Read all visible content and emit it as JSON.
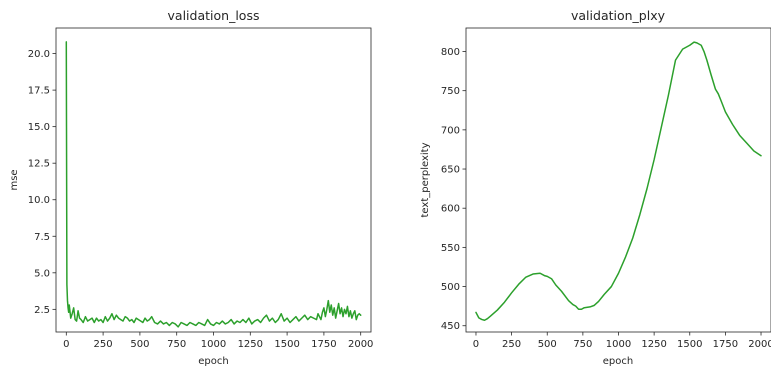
{
  "chart_data": [
    {
      "type": "line",
      "title": "validation_loss",
      "xlabel": "epoch",
      "ylabel": "mse",
      "xlim": [
        -70,
        2070
      ],
      "ylim": [
        0.95,
        21.75
      ],
      "xticks": [
        0,
        250,
        500,
        750,
        1000,
        1250,
        1500,
        1750,
        2000
      ],
      "xtick_labels": [
        "0",
        "250",
        "500",
        "750",
        "1000",
        "1250",
        "1500",
        "1750",
        "2000"
      ],
      "yticks": [
        2.5,
        5.0,
        7.5,
        10.0,
        12.5,
        15.0,
        17.5,
        20.0
      ],
      "ytick_labels": [
        "2.5",
        "5.0",
        "7.5",
        "10.0",
        "12.5",
        "15.0",
        "17.5",
        "20.0"
      ],
      "grid": false,
      "series": [
        {
          "color": "#2ca02c",
          "x": [
            0,
            4,
            8,
            12,
            16,
            20,
            30,
            40,
            50,
            60,
            70,
            80,
            90,
            100,
            115,
            130,
            145,
            160,
            175,
            190,
            205,
            220,
            235,
            250,
            265,
            280,
            295,
            310,
            325,
            340,
            355,
            370,
            385,
            400,
            415,
            430,
            445,
            460,
            475,
            490,
            505,
            520,
            535,
            550,
            565,
            580,
            600,
            620,
            640,
            660,
            680,
            700,
            720,
            740,
            760,
            780,
            800,
            820,
            840,
            860,
            880,
            900,
            920,
            940,
            960,
            980,
            1000,
            1020,
            1040,
            1060,
            1080,
            1100,
            1120,
            1140,
            1160,
            1180,
            1200,
            1220,
            1240,
            1260,
            1280,
            1300,
            1320,
            1340,
            1360,
            1380,
            1400,
            1420,
            1440,
            1460,
            1480,
            1500,
            1520,
            1540,
            1560,
            1580,
            1600,
            1620,
            1640,
            1660,
            1680,
            1700,
            1710,
            1720,
            1730,
            1740,
            1750,
            1760,
            1770,
            1780,
            1790,
            1800,
            1810,
            1820,
            1830,
            1840,
            1850,
            1860,
            1870,
            1880,
            1890,
            1900,
            1910,
            1920,
            1930,
            1940,
            1950,
            1960,
            1970,
            1980,
            1990,
            2000
          ],
          "y": [
            20.8,
            4.2,
            3.1,
            2.6,
            2.3,
            2.8,
            1.9,
            2.2,
            2.6,
            1.8,
            1.7,
            2.4,
            1.9,
            1.8,
            1.6,
            2.0,
            1.7,
            1.8,
            1.9,
            1.6,
            1.9,
            1.7,
            1.8,
            1.6,
            2.0,
            1.7,
            1.9,
            2.2,
            1.8,
            2.1,
            1.9,
            1.8,
            1.7,
            2.0,
            1.9,
            1.7,
            1.8,
            1.6,
            1.9,
            1.8,
            1.7,
            1.6,
            1.9,
            1.7,
            1.8,
            2.0,
            1.6,
            1.5,
            1.7,
            1.5,
            1.6,
            1.4,
            1.6,
            1.5,
            1.3,
            1.6,
            1.5,
            1.4,
            1.6,
            1.5,
            1.4,
            1.6,
            1.5,
            1.4,
            1.8,
            1.5,
            1.4,
            1.6,
            1.5,
            1.7,
            1.5,
            1.6,
            1.8,
            1.5,
            1.7,
            1.6,
            1.8,
            1.6,
            1.9,
            1.5,
            1.7,
            1.8,
            1.6,
            1.9,
            2.1,
            1.7,
            1.9,
            1.6,
            1.8,
            2.2,
            1.7,
            1.9,
            1.6,
            1.8,
            2.0,
            1.7,
            1.9,
            2.1,
            1.8,
            2.0,
            1.9,
            1.8,
            2.2,
            2.0,
            1.8,
            2.3,
            2.6,
            2.0,
            2.5,
            3.1,
            2.3,
            2.8,
            2.1,
            2.6,
            1.9,
            2.4,
            2.9,
            2.2,
            2.6,
            2.0,
            2.5,
            2.2,
            2.7,
            2.0,
            2.4,
            1.9,
            2.2,
            2.4,
            1.8,
            2.1,
            2.2,
            2.1
          ]
        }
      ]
    },
    {
      "type": "line",
      "title": "validation_plxy",
      "xlabel": "epoch",
      "ylabel": "text_perplexity",
      "xlim": [
        -70,
        2070
      ],
      "ylim": [
        442,
        830
      ],
      "xticks": [
        0,
        250,
        500,
        750,
        1000,
        1250,
        1500,
        1750,
        2000
      ],
      "xtick_labels": [
        "0",
        "250",
        "500",
        "750",
        "1000",
        "1250",
        "1500",
        "1750",
        "2000"
      ],
      "yticks": [
        450,
        500,
        550,
        600,
        650,
        700,
        750,
        800
      ],
      "ytick_labels": [
        "450",
        "500",
        "550",
        "600",
        "650",
        "700",
        "750",
        "800"
      ],
      "grid": false,
      "series": [
        {
          "color": "#2ca02c",
          "x": [
            0,
            20,
            40,
            60,
            80,
            100,
            150,
            200,
            250,
            300,
            350,
            400,
            450,
            480,
            500,
            530,
            560,
            600,
            650,
            680,
            700,
            720,
            740,
            760,
            800,
            830,
            860,
            900,
            950,
            1000,
            1050,
            1100,
            1150,
            1200,
            1250,
            1300,
            1350,
            1400,
            1450,
            1500,
            1530,
            1550,
            1580,
            1600,
            1620,
            1650,
            1680,
            1700,
            1720,
            1750,
            1800,
            1850,
            1900,
            1950,
            2000
          ],
          "y": [
            467,
            460,
            458,
            457,
            459,
            462,
            470,
            480,
            492,
            503,
            512,
            516,
            517,
            514,
            513,
            510,
            502,
            494,
            482,
            477,
            475,
            471,
            471,
            473,
            474,
            476,
            481,
            490,
            500,
            517,
            538,
            562,
            592,
            625,
            662,
            703,
            744,
            789,
            803,
            808,
            812,
            811,
            808,
            800,
            789,
            770,
            752,
            746,
            737,
            723,
            707,
            693,
            683,
            673,
            667
          ]
        }
      ]
    }
  ]
}
